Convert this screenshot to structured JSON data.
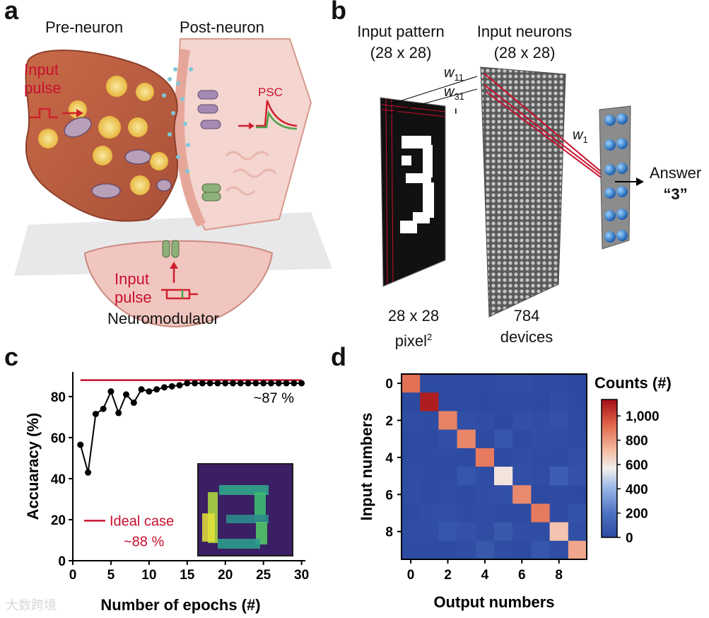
{
  "panel_labels": {
    "a": "a",
    "b": "b",
    "c": "c",
    "d": "d"
  },
  "panel_a": {
    "pre_neuron": "Pre-neuron",
    "post_neuron": "Post-neuron",
    "input_pulse_top": [
      "Input",
      "pulse"
    ],
    "psc": "PSC",
    "input_pulse_bottom": [
      "Input",
      "pulse"
    ],
    "neuromodulator": "Neuromodulator"
  },
  "panel_b": {
    "input_pattern": [
      "Input pattern",
      "(28 x 28)"
    ],
    "input_neurons": [
      "Input neurons",
      "(28 x 28)"
    ],
    "w11": {
      "base": "w",
      "sub": "11"
    },
    "w31": {
      "base": "w",
      "sub": "31"
    },
    "w1": {
      "base": "w",
      "sub": "1"
    },
    "ellipsis": "......",
    "digit": "3",
    "answer": "Answer",
    "answer_value": "“3”",
    "pixel_caption": [
      "28 x 28",
      "pixel",
      "2"
    ],
    "devices_caption": [
      "784",
      "devices"
    ]
  },
  "watermark": "大数跨境",
  "colors": {
    "ideal_line": "#c8102e",
    "series": "#000000",
    "accent_red": "#c8102e"
  },
  "chart_data": [
    {
      "type": "line",
      "panel": "c",
      "title": "",
      "xlabel": "Number of epochs (#)",
      "ylabel": "Accuaracy (%)",
      "xlim": [
        0,
        30.5
      ],
      "ylim": [
        0,
        92
      ],
      "xticks": [
        0,
        5,
        10,
        15,
        20,
        25,
        30
      ],
      "yticks": [
        0,
        20,
        40,
        60,
        80
      ],
      "series": [
        {
          "name": "Accuracy",
          "x": [
            1,
            2,
            3,
            4,
            5,
            6,
            7,
            8,
            9,
            10,
            11,
            12,
            13,
            14,
            15,
            16,
            17,
            18,
            19,
            20,
            21,
            22,
            23,
            24,
            25,
            26,
            27,
            28,
            29,
            30
          ],
          "values": [
            56.5,
            43,
            71.5,
            74,
            82.5,
            72,
            81,
            77,
            83.5,
            82.5,
            83.5,
            84.5,
            85,
            85.5,
            86.5,
            86.5,
            86.5,
            86.5,
            86.5,
            86.5,
            86.5,
            86.5,
            86.5,
            86.5,
            86.5,
            86.5,
            86.5,
            86.5,
            86.5,
            86.5
          ]
        },
        {
          "name": "Ideal case",
          "x": [
            1,
            30
          ],
          "values": [
            88,
            88
          ]
        }
      ],
      "annotations": {
        "final": "~87 %",
        "ideal_label": "Ideal case",
        "ideal_value": "~88 %"
      }
    },
    {
      "type": "heatmap",
      "panel": "d",
      "title": "",
      "xlabel": "Output numbers",
      "ylabel": "Input numbers",
      "xticks": [
        0,
        2,
        4,
        6,
        8
      ],
      "yticks": [
        0,
        2,
        4,
        6,
        8
      ],
      "colorbar_title": "Counts (#)",
      "colorbar_ticks": [
        "0",
        "200",
        "400",
        "600",
        "800",
        "1,000"
      ],
      "colorbar_range": [
        0,
        1135
      ],
      "matrix": [
        [
          905,
          5,
          10,
          5,
          5,
          15,
          20,
          10,
          5,
          0
        ],
        [
          0,
          1100,
          5,
          5,
          0,
          5,
          5,
          0,
          15,
          0
        ],
        [
          15,
          10,
          860,
          30,
          15,
          0,
          35,
          20,
          40,
          7
        ],
        [
          5,
          5,
          30,
          850,
          5,
          60,
          5,
          25,
          15,
          10
        ],
        [
          5,
          10,
          10,
          5,
          880,
          5,
          20,
          10,
          10,
          27
        ],
        [
          15,
          10,
          10,
          60,
          20,
          600,
          30,
          15,
          95,
          37
        ],
        [
          20,
          5,
          15,
          5,
          20,
          35,
          840,
          5,
          13,
          0
        ],
        [
          5,
          20,
          35,
          10,
          15,
          5,
          5,
          880,
          10,
          43
        ],
        [
          15,
          15,
          60,
          40,
          15,
          75,
          20,
          15,
          690,
          29
        ],
        [
          10,
          10,
          5,
          20,
          70,
          20,
          5,
          60,
          20,
          769
        ]
      ]
    }
  ]
}
